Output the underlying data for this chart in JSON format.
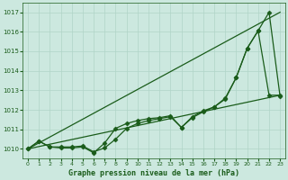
{
  "bg_color": "#cce8df",
  "plot_bg_color": "#cce8df",
  "grid_color": "#b0d4c8",
  "line_color": "#1a5c1a",
  "xlabel": "Graphe pression niveau de la mer (hPa)",
  "xlabel_color": "#1a5c1a",
  "tick_color": "#1a5c1a",
  "ylim": [
    1009.5,
    1017.5
  ],
  "xlim": [
    -0.5,
    23.5
  ],
  "yticks": [
    1010,
    1011,
    1012,
    1013,
    1014,
    1015,
    1016,
    1017
  ],
  "xticks": [
    0,
    1,
    2,
    3,
    4,
    5,
    6,
    7,
    8,
    9,
    10,
    11,
    12,
    13,
    14,
    15,
    16,
    17,
    18,
    19,
    20,
    21,
    22,
    23
  ],
  "series": [
    {
      "x": [
        0,
        1,
        2,
        3,
        4,
        5,
        6,
        7,
        8,
        9,
        10,
        11,
        12,
        13,
        14,
        15,
        16,
        17,
        18,
        19,
        20,
        21,
        22,
        23
      ],
      "y": [
        1010.0,
        1010.4,
        1010.1,
        1010.05,
        1010.05,
        1010.1,
        1009.8,
        1010.3,
        1011.05,
        1011.3,
        1011.45,
        1011.55,
        1011.6,
        1011.7,
        1011.1,
        1011.6,
        1011.9,
        1012.15,
        1012.55,
        1013.65,
        1015.15,
        1016.05,
        1017.0,
        1012.7
      ],
      "marker": "D",
      "markersize": 2.5,
      "linewidth": 0.9
    },
    {
      "x": [
        0,
        1,
        2,
        3,
        4,
        5,
        6,
        7,
        8,
        9,
        10,
        11,
        12,
        13,
        14,
        15,
        16,
        17,
        18,
        19,
        20,
        21,
        22,
        23
      ],
      "y": [
        1010.0,
        1010.4,
        1010.1,
        1010.1,
        1010.1,
        1010.15,
        1009.85,
        1010.05,
        1010.5,
        1011.05,
        1011.3,
        1011.45,
        1011.55,
        1011.65,
        1011.1,
        1011.65,
        1011.95,
        1012.15,
        1012.6,
        1013.65,
        1015.15,
        1016.05,
        1012.75,
        1012.75
      ],
      "marker": "D",
      "markersize": 2.5,
      "linewidth": 0.9
    },
    {
      "x": [
        0,
        23
      ],
      "y": [
        1010.0,
        1017.0
      ],
      "marker": null,
      "markersize": 0,
      "linewidth": 0.9
    },
    {
      "x": [
        0,
        23
      ],
      "y": [
        1010.0,
        1012.75
      ],
      "marker": null,
      "markersize": 0,
      "linewidth": 0.9
    }
  ]
}
